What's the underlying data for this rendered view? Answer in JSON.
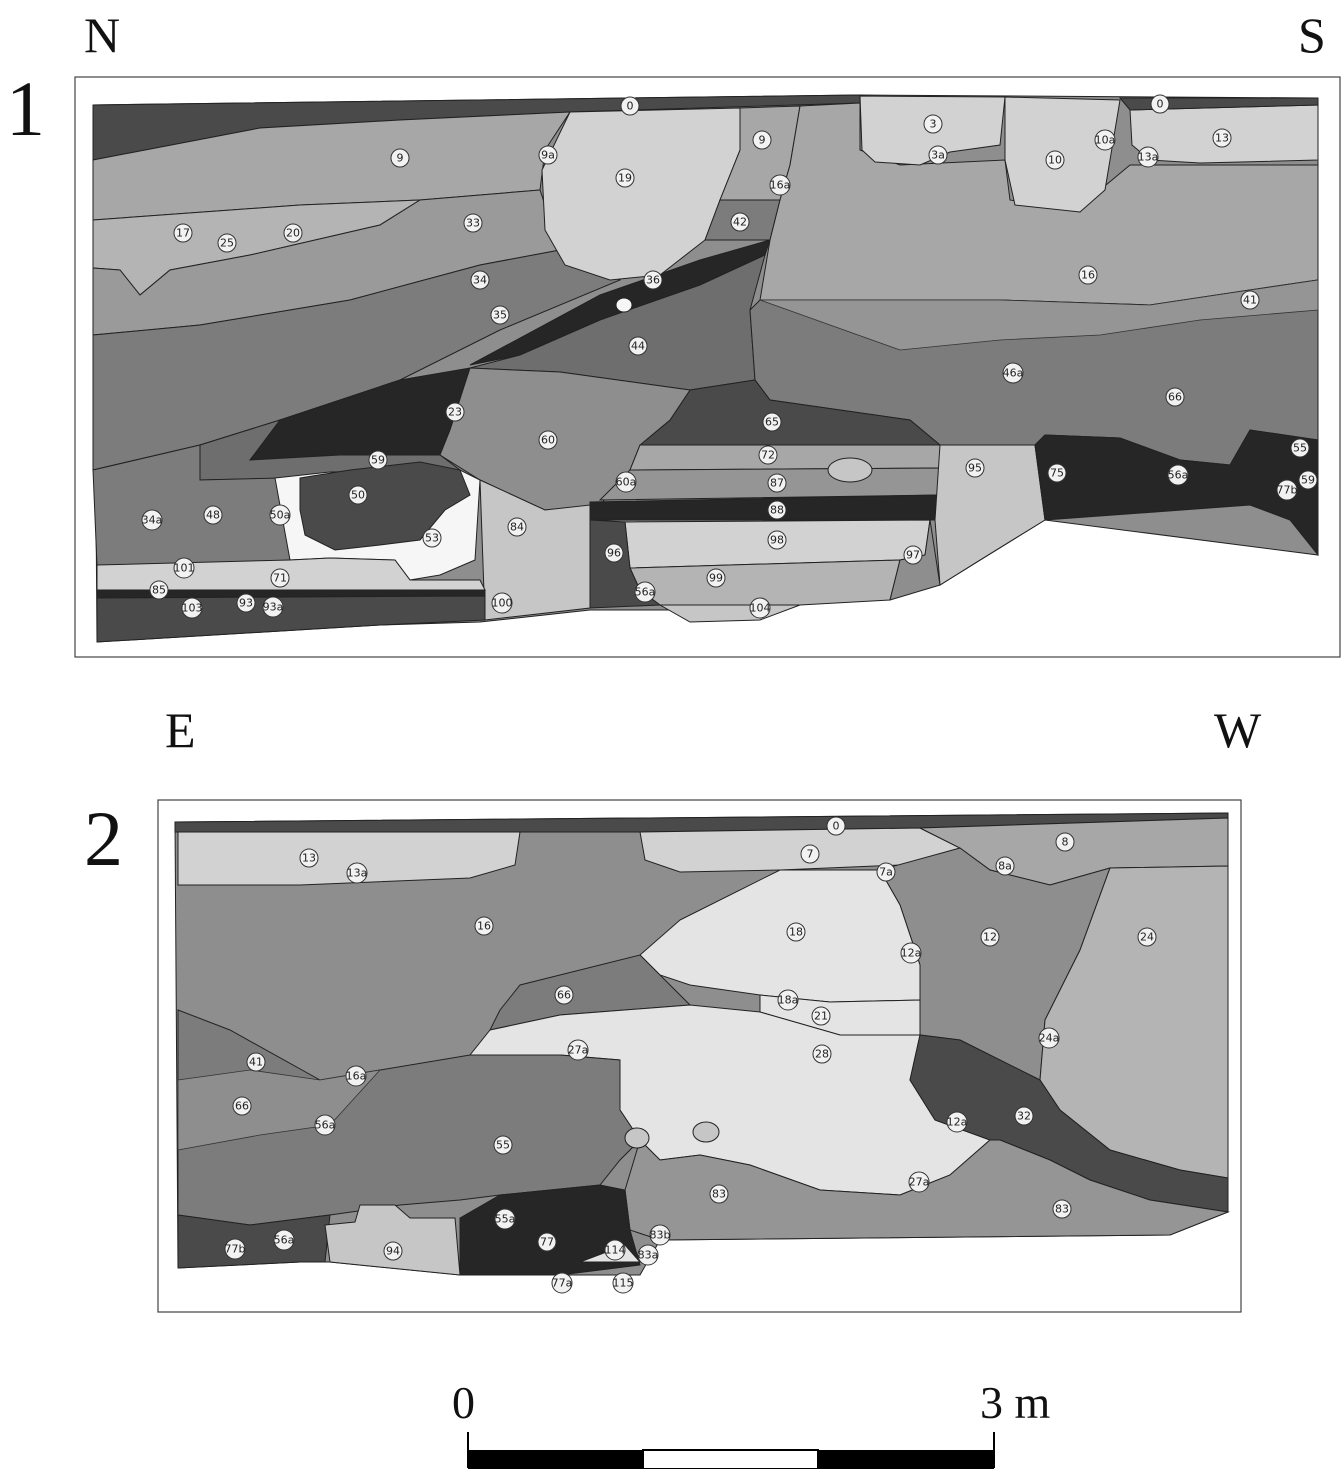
{
  "section_1": {
    "number": "1",
    "orientation_left": "N",
    "orientation_right": "S",
    "layers": [
      "0",
      "0",
      "3",
      "3a",
      "9",
      "9a",
      "9",
      "10",
      "10a",
      "13",
      "13a",
      "16a",
      "17",
      "19",
      "20",
      "25",
      "33",
      "42",
      "34",
      "36",
      "35",
      "44",
      "16",
      "41",
      "46a",
      "66",
      "23",
      "60",
      "65",
      "72",
      "87",
      "88",
      "98",
      "59",
      "50",
      "50a",
      "48",
      "34a",
      "53",
      "84",
      "60a",
      "96",
      "99",
      "97",
      "95",
      "75",
      "56a",
      "55",
      "59",
      "77b",
      "101",
      "71",
      "85",
      "103",
      "93",
      "93a",
      "100",
      "56a",
      "104"
    ]
  },
  "section_2": {
    "number": "2",
    "orientation_left": "E",
    "orientation_right": "W",
    "layers": [
      "0",
      "13",
      "13a",
      "7",
      "7a",
      "8",
      "8a",
      "16",
      "18",
      "12",
      "24",
      "12a",
      "66",
      "18a",
      "21",
      "27a",
      "28",
      "24a",
      "41",
      "16a",
      "66",
      "56a",
      "55",
      "12a",
      "32",
      "83",
      "27a",
      "83",
      "55a",
      "77b",
      "56a",
      "94",
      "77",
      "114",
      "83a",
      "83b",
      "77a",
      "115"
    ]
  },
  "scale_bar": {
    "start_label": "0",
    "end_label": "3 m"
  },
  "colors": {
    "light": "#d2d2d2",
    "pale": "#e4e4e4",
    "mid": "#a7a7a7",
    "midDark": "#8e8e8e",
    "dark": "#6e6e6e",
    "darker": "#4a4a4a",
    "black": "#262626",
    "white": "#f6f6f6"
  }
}
